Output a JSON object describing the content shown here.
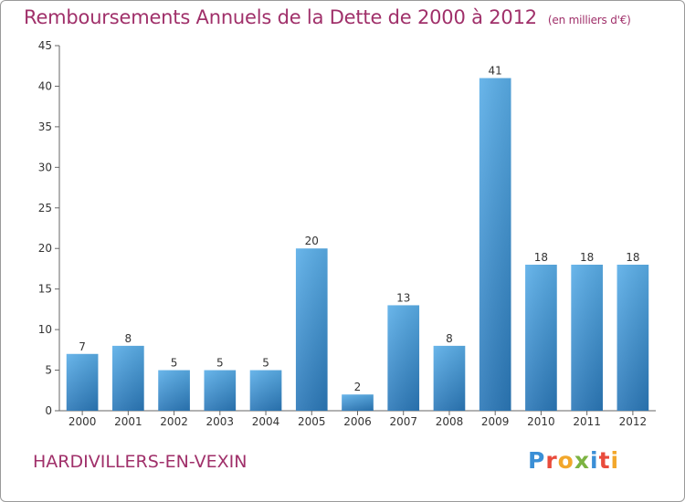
{
  "header": {
    "title": "Remboursements Annuels de la Dette de 2000 à 2012",
    "unit": "(en milliers d'€)"
  },
  "footer": {
    "place": "HARDIVILLERS-EN-VEXIN",
    "logo": "Proxiti"
  },
  "colors": {
    "bar_top": "#5aaee8",
    "bar_bottom": "#2b78b8",
    "title": "#a0306a"
  },
  "chart_data": {
    "type": "bar",
    "title": "Remboursements Annuels de la Dette de 2000 à 2012",
    "subtitle": "(en milliers d'€)",
    "xlabel": "",
    "ylabel": "",
    "categories": [
      "2000",
      "2001",
      "2002",
      "2003",
      "2004",
      "2005",
      "2006",
      "2007",
      "2008",
      "2009",
      "2010",
      "2011",
      "2012"
    ],
    "values": [
      7,
      8,
      5,
      5,
      5,
      20,
      2,
      13,
      8,
      41,
      18,
      18,
      18
    ],
    "ylim": [
      0,
      45
    ],
    "yticks": [
      0,
      5,
      10,
      15,
      20,
      25,
      30,
      35,
      40,
      45
    ],
    "grid": false,
    "legend": "none"
  }
}
